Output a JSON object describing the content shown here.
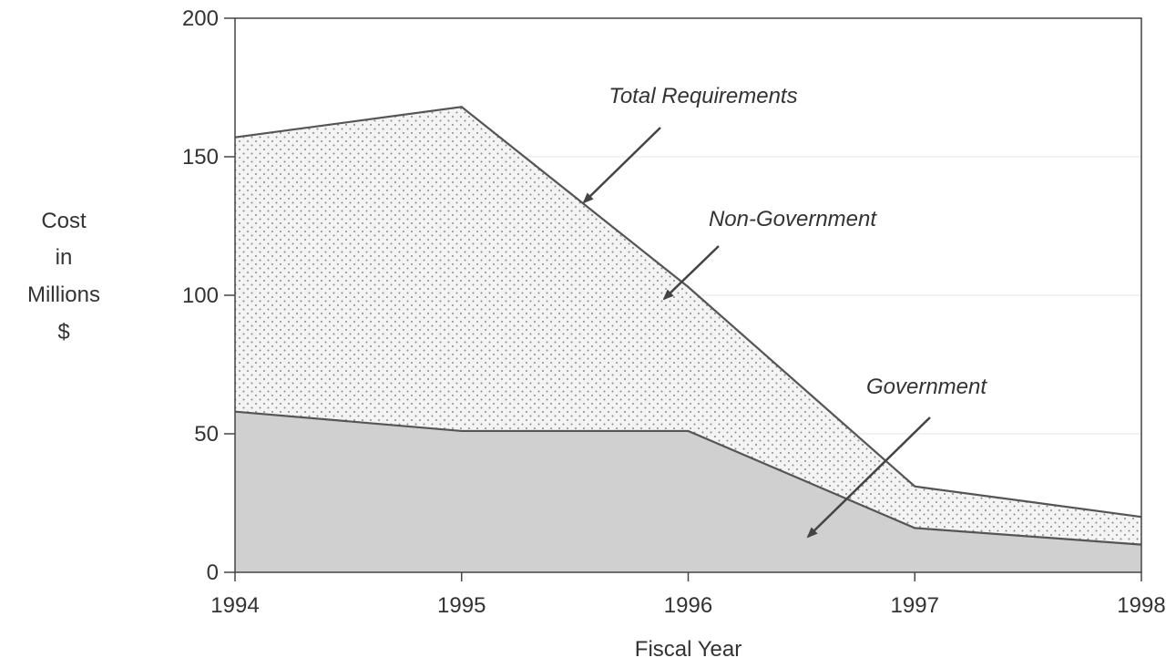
{
  "chart_data": {
    "type": "area",
    "title": "",
    "xlabel": "Fiscal Year",
    "ylabel_lines": [
      "Cost",
      "in",
      "Millions",
      "$"
    ],
    "x": [
      1994,
      1995,
      1996,
      1997,
      1998
    ],
    "xticks": [
      "1994",
      "1995",
      "1996",
      "1997",
      "1998"
    ],
    "yticks": [
      "0",
      "50",
      "100",
      "150",
      "200"
    ],
    "ylim": [
      0,
      200
    ],
    "xlim": [
      1994,
      1998
    ],
    "grid": "horizontal",
    "stacked": true,
    "series": [
      {
        "name": "Government",
        "values": [
          58,
          51,
          51,
          16,
          10
        ],
        "fill": "#d0d0d0",
        "pattern": "solid"
      },
      {
        "name": "Non-Government",
        "values": [
          99,
          117,
          52,
          15,
          10
        ],
        "fill": "#f4f4f4",
        "pattern": "dotted"
      }
    ],
    "total_line": {
      "name": "Total Requirements",
      "values": [
        157,
        168,
        103,
        31,
        20
      ]
    },
    "annotations": [
      {
        "text": "Total Requirements",
        "points_to": "Total Requirements"
      },
      {
        "text": "Non-Government",
        "points_to": "Non-Government"
      },
      {
        "text": "Government",
        "points_to": "Government"
      }
    ],
    "colors": {
      "line": "#555555",
      "axis": "#444444",
      "grid": "#e4e4e4"
    }
  }
}
